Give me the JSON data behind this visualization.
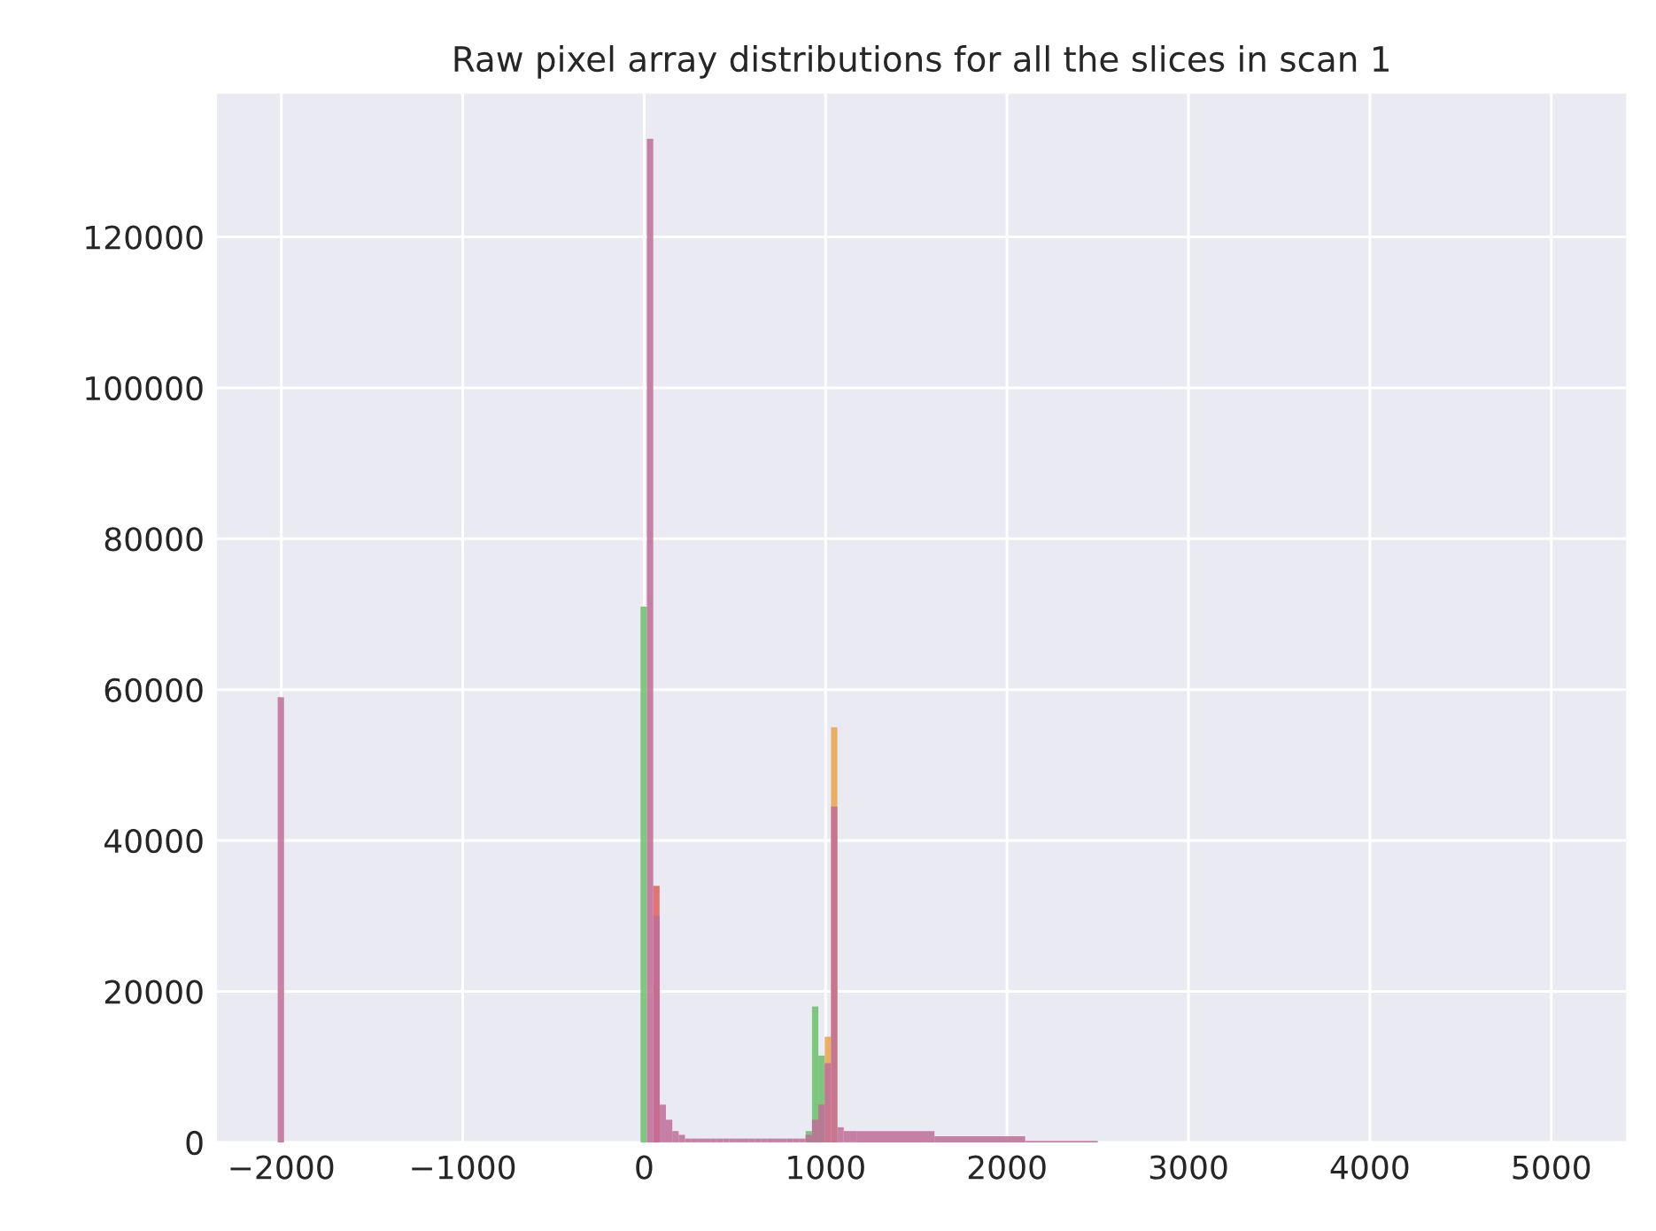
{
  "chart_data": {
    "type": "histogram",
    "title": "Raw pixel array distributions for all the slices in scan 1",
    "bins": [
      -2020,
      -1985,
      -20,
      15,
      50,
      85,
      120,
      155,
      190,
      225,
      260,
      295,
      330,
      365,
      400,
      435,
      470,
      505,
      540,
      575,
      610,
      645,
      680,
      715,
      750,
      785,
      820,
      855,
      890,
      925,
      960,
      995,
      1030,
      1065,
      1100,
      1135,
      1170,
      1600,
      2100,
      2500
    ],
    "series": [
      {
        "color": "#e7a44a",
        "values": [
          0,
          0,
          0,
          0,
          0,
          0,
          0,
          0,
          0,
          0,
          0,
          0,
          0,
          0,
          0,
          0,
          0,
          0,
          0,
          0,
          0,
          0,
          0,
          0,
          0,
          0,
          0,
          0,
          0,
          0,
          0,
          14000,
          55000,
          0,
          0,
          0,
          0,
          0,
          0
        ]
      },
      {
        "color": "#e0605a",
        "values": [
          0,
          0,
          0,
          0,
          34000,
          0,
          0,
          0,
          0,
          0,
          0,
          0,
          0,
          0,
          0,
          0,
          0,
          0,
          0,
          0,
          0,
          0,
          0,
          0,
          0,
          0,
          0,
          0,
          0,
          0,
          0,
          0,
          0,
          0,
          0,
          0,
          0,
          0,
          0
        ]
      },
      {
        "color": "#6abf69",
        "values": [
          0,
          0,
          71000,
          0,
          0,
          0,
          0,
          0,
          0,
          0,
          0,
          0,
          0,
          0,
          0,
          0,
          0,
          0,
          0,
          0,
          0,
          0,
          0,
          0,
          0,
          0,
          0,
          0,
          1500,
          18000,
          11500,
          0,
          0,
          0,
          0,
          0,
          0,
          0,
          0
        ]
      },
      {
        "color": "#c06c98",
        "values": [
          59000,
          0,
          0,
          133000,
          30000,
          5000,
          3000,
          1500,
          1000,
          500,
          500,
          500,
          500,
          500,
          500,
          500,
          500,
          500,
          500,
          500,
          500,
          500,
          500,
          500,
          500,
          500,
          500,
          500,
          1000,
          3000,
          5000,
          10500,
          44500,
          2000,
          1500,
          1500,
          1500,
          800,
          200
        ]
      }
    ],
    "xlim": [
      -2355,
      5413
    ],
    "ylim": [
      0,
      139000
    ],
    "xticks": [
      {
        "value": -2000,
        "label": "−2000"
      },
      {
        "value": -1000,
        "label": "−1000"
      },
      0,
      1000,
      2000,
      3000,
      4000,
      5000
    ],
    "yticks": [
      0,
      20000,
      40000,
      60000,
      80000,
      100000,
      120000
    ],
    "grid": true
  }
}
